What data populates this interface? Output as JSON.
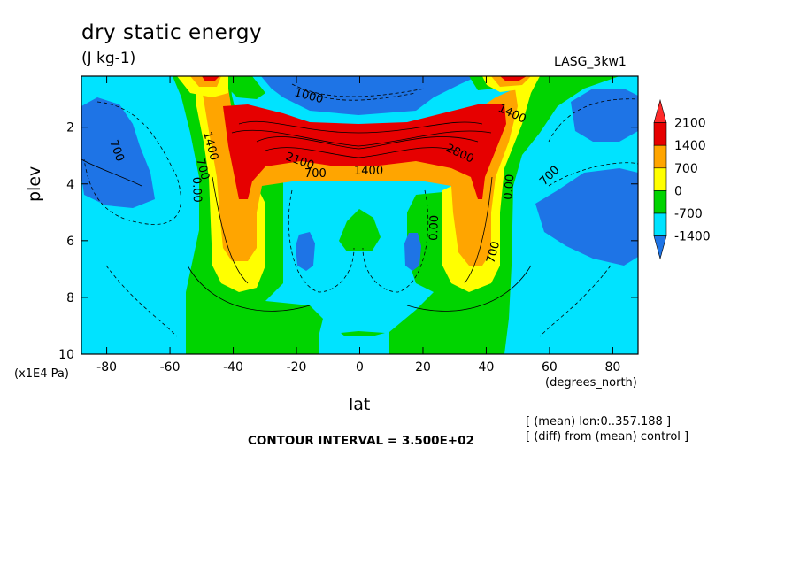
{
  "chart_data": {
    "type": "heatmap",
    "title": "dry static energy",
    "subtitle": "(J kg-1)",
    "dataset_label": "LASG_3kw1",
    "xlabel": "lat",
    "ylabel": "plev",
    "x_units": "(degrees_north)",
    "y_units": "(x1E4 Pa)",
    "xlim": [
      -88,
      88
    ],
    "ylim": [
      10,
      0.2
    ],
    "x_ticks": [
      -80,
      -60,
      -40,
      -20,
      0,
      20,
      40,
      60,
      80
    ],
    "x_tick_labels": [
      "-80",
      "-60",
      "-40",
      "-20",
      "0",
      "20",
      "40",
      "60",
      "80"
    ],
    "y_ticks": [
      2,
      4,
      6,
      8,
      10
    ],
    "y_tick_labels": [
      "2",
      "4",
      "6",
      "8",
      "10"
    ],
    "colorbar": {
      "labels": [
        "2100",
        "1400",
        "700",
        "0",
        "-700",
        "-1400"
      ],
      "colors": [
        "#1e74e6",
        "#00e3ff",
        "#00d400",
        "#ffff00",
        "#ffa500",
        "#e60000",
        "#ff2a2a"
      ]
    },
    "contour_interval": "CONTOUR INTERVAL = 3.500E+02",
    "notes": [
      "[ (mean) lon:0..357.188 ]",
      "[ (diff) from (mean) control ]"
    ],
    "contour_labels": [
      "700",
      "1400",
      "2100",
      "2800",
      "0.00",
      "-700",
      "1000"
    ],
    "grid": false
  },
  "colors": {
    "deep_blue": "#1e74e6",
    "cyan": "#00e3ff",
    "green": "#00d400",
    "yellow": "#ffff00",
    "orange": "#ffa500",
    "red": "#e60000"
  }
}
